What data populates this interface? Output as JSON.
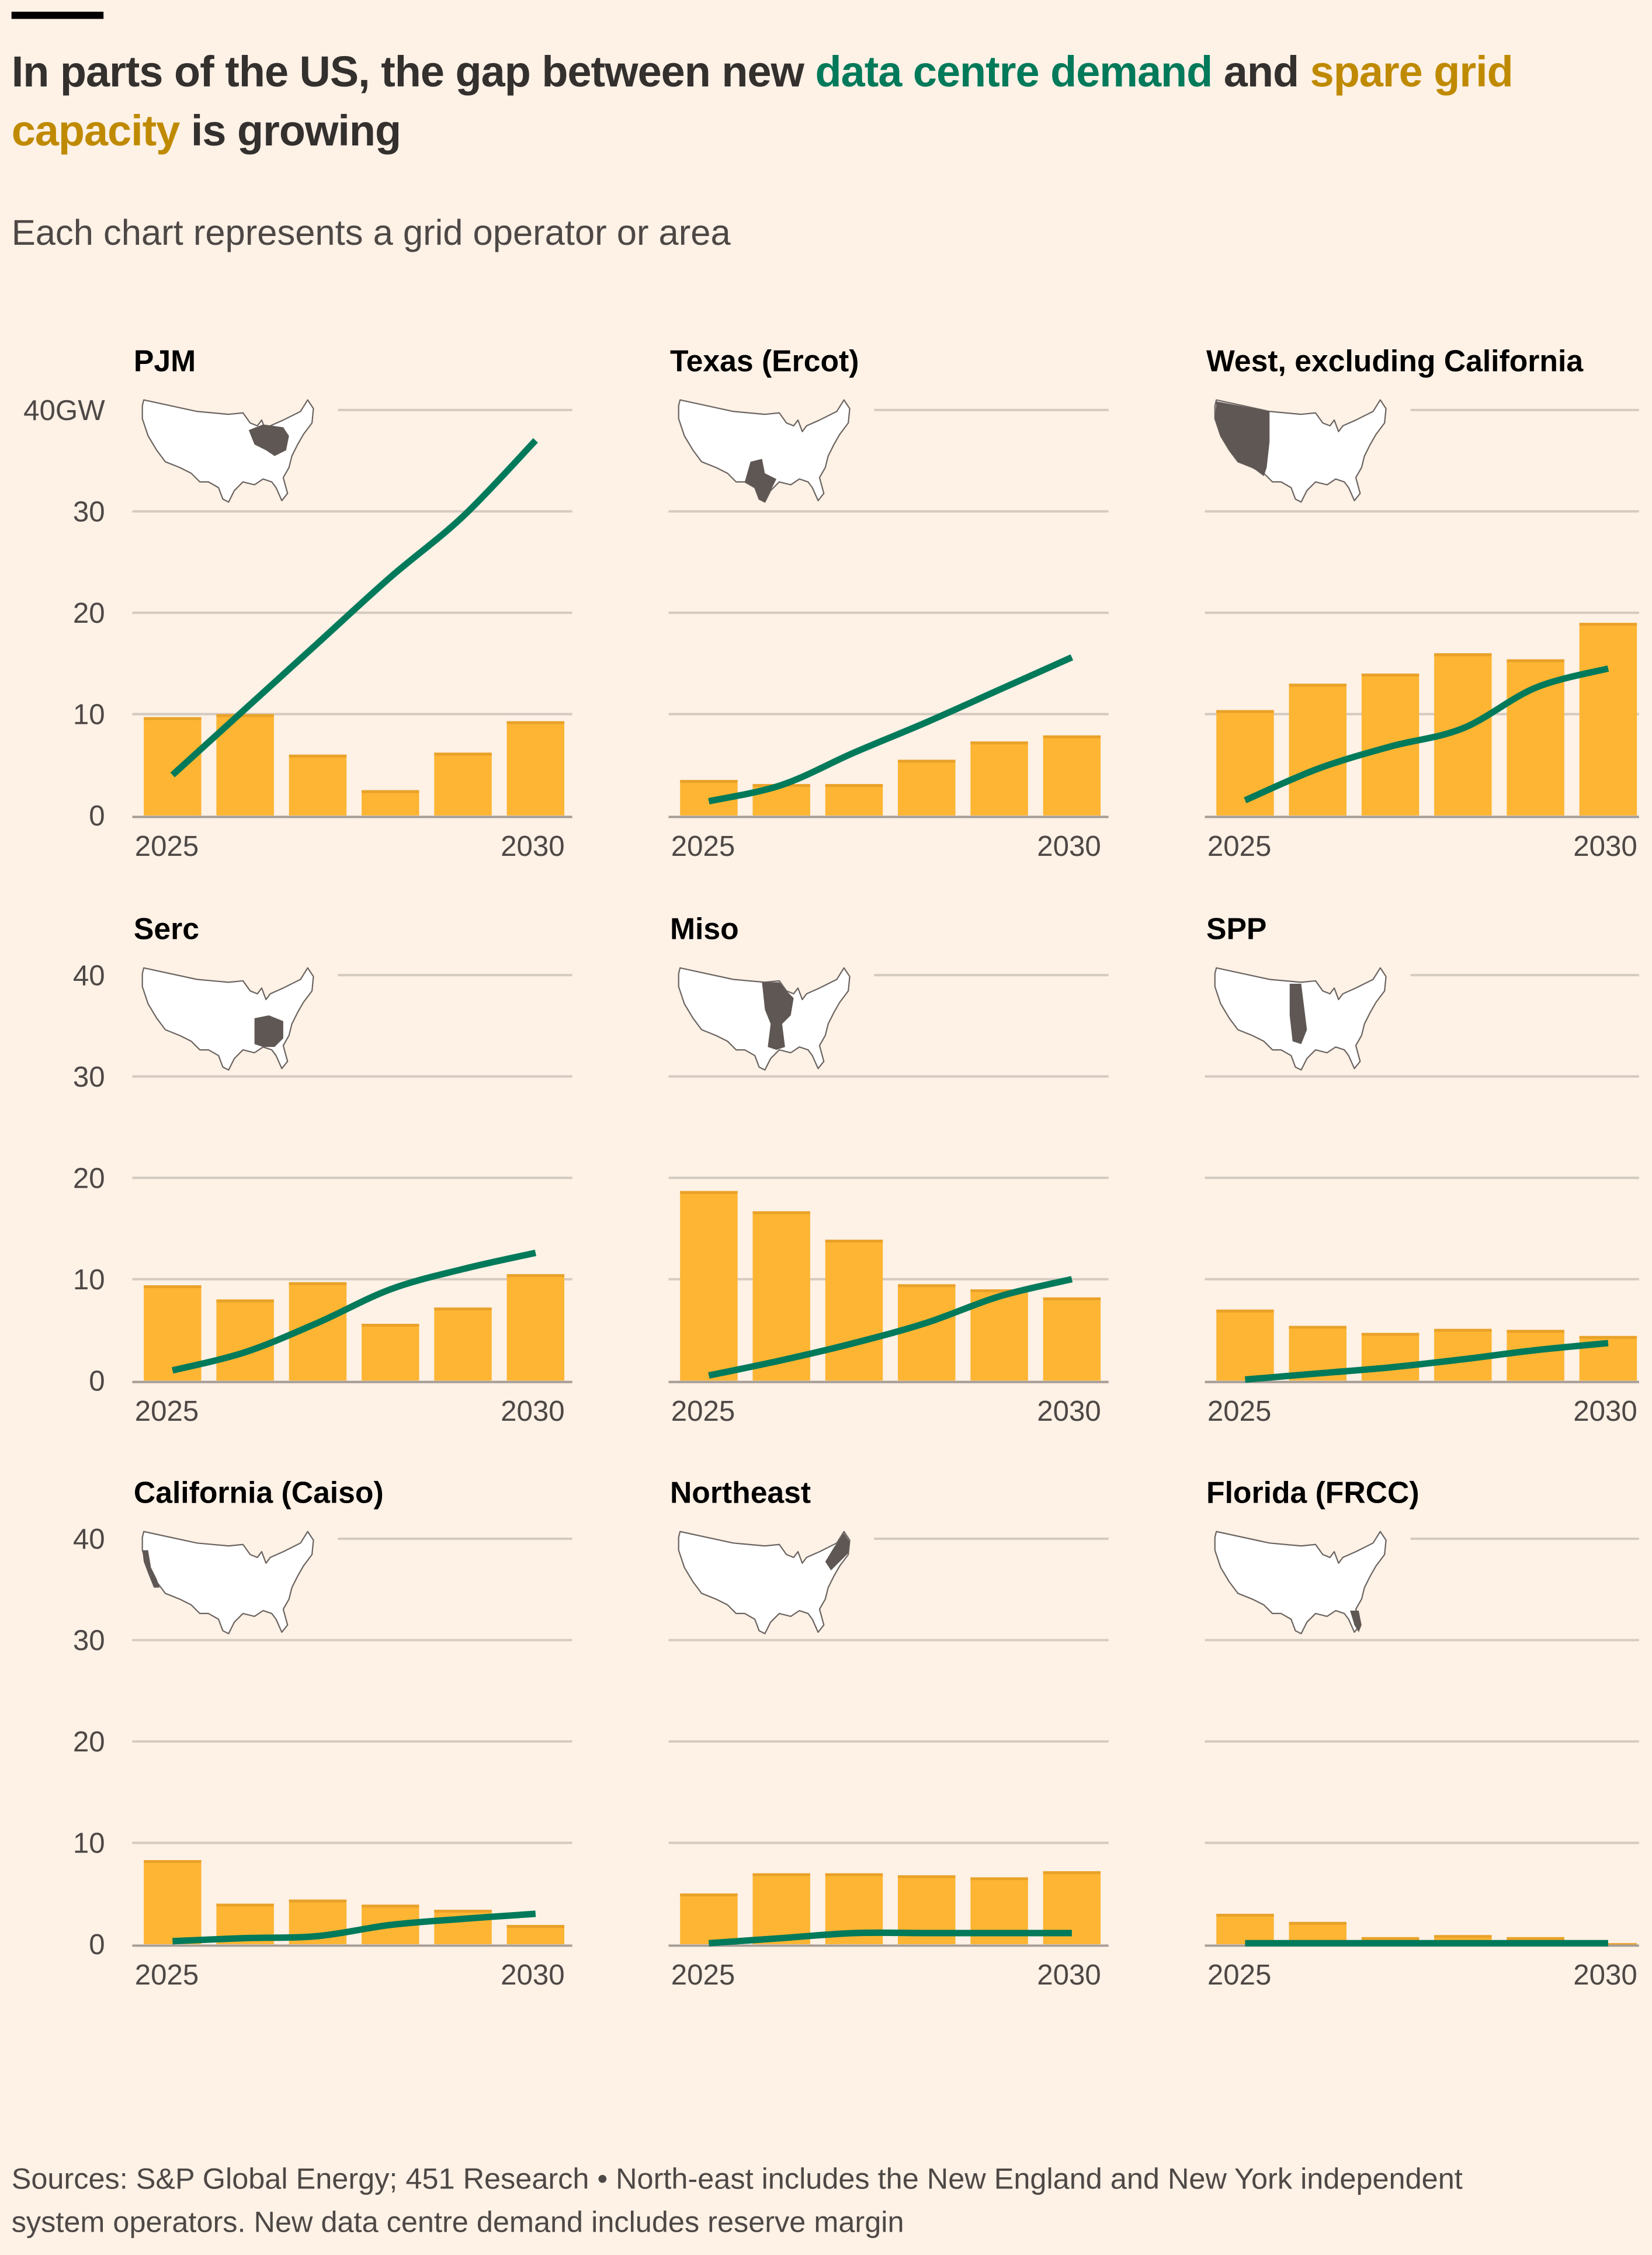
{
  "header": {
    "title_line1": [
      {
        "text": "In parts of the US, the gap between new ",
        "color": "#33302e"
      },
      {
        "text": "data centre demand",
        "color": "#007a5a"
      },
      {
        "text": " and ",
        "color": "#33302e"
      },
      {
        "text": "spare grid",
        "color": "#bf8a00"
      }
    ],
    "title_line2": [
      {
        "text": "capacity",
        "color": "#bf8a00"
      },
      {
        "text": " is growing",
        "color": "#33302e"
      }
    ],
    "subtitle": "Each chart represents a grid operator or area"
  },
  "colors": {
    "background": "#fef1e6",
    "bar": "#fdb533",
    "bar_edge": "#e9a229",
    "line": "#007a5a",
    "grid": "#d3cac0",
    "map_highlight": "#5f5753"
  },
  "footnote": {
    "line1": "Sources: S&P Global Energy; 451 Research • North-east includes the New England and New York independent",
    "line2": "system operators. New data centre demand includes reserve margin"
  },
  "chart_data": [
    {
      "title": "PJM",
      "type": "bar+line",
      "region": "pjm",
      "x": [
        2025,
        2026,
        2027,
        2028,
        2029,
        2030
      ],
      "xticks": [
        "2025",
        "2030"
      ],
      "ylim": [
        0,
        40
      ],
      "yticks": [
        "0",
        "10",
        "20",
        "30",
        "40GW"
      ],
      "grid": true,
      "series": [
        {
          "name": "spare grid capacity",
          "type": "bar",
          "values": [
            9.7,
            10,
            6,
            2.5,
            6.2,
            9.3
          ]
        },
        {
          "name": "data centre demand",
          "type": "line",
          "values": [
            4,
            10.5,
            17,
            23.5,
            29.5,
            37
          ]
        }
      ]
    },
    {
      "title": "Texas (Ercot)",
      "type": "bar+line",
      "region": "texas",
      "x": [
        2025,
        2026,
        2027,
        2028,
        2029,
        2030
      ],
      "xticks": [
        "2025",
        "2030"
      ],
      "ylim": [
        0,
        40
      ],
      "yticks": [],
      "grid": true,
      "series": [
        {
          "name": "spare grid capacity",
          "type": "bar",
          "values": [
            3.5,
            3.1,
            3.1,
            5.5,
            7.3,
            7.9
          ]
        },
        {
          "name": "data centre demand",
          "type": "line",
          "values": [
            1.4,
            3,
            6.2,
            9.2,
            12.4,
            15.6
          ]
        }
      ]
    },
    {
      "title": "West, excluding California",
      "type": "bar+line",
      "region": "west",
      "x": [
        2025,
        2026,
        2027,
        2028,
        2029,
        2030
      ],
      "xticks": [
        "2025",
        "2030"
      ],
      "ylim": [
        0,
        40
      ],
      "yticks": [],
      "grid": true,
      "series": [
        {
          "name": "spare grid capacity",
          "type": "bar",
          "values": [
            10.4,
            13,
            14,
            16,
            15.4,
            19
          ]
        },
        {
          "name": "data centre demand",
          "type": "line",
          "values": [
            1.5,
            4.6,
            6.8,
            8.6,
            12.6,
            14.5
          ]
        }
      ]
    },
    {
      "title": "Serc",
      "type": "bar+line",
      "region": "serc",
      "x": [
        2025,
        2026,
        2027,
        2028,
        2029,
        2030
      ],
      "xticks": [
        "2025",
        "2030"
      ],
      "ylim": [
        0,
        40
      ],
      "yticks": [
        "0",
        "10",
        "20",
        "30",
        "40"
      ],
      "grid": true,
      "series": [
        {
          "name": "spare grid capacity",
          "type": "bar",
          "values": [
            9.4,
            8,
            9.7,
            5.6,
            7.2,
            10.5
          ]
        },
        {
          "name": "data centre demand",
          "type": "line",
          "values": [
            1,
            2.8,
            5.7,
            9,
            11,
            12.6
          ]
        }
      ]
    },
    {
      "title": "Miso",
      "type": "bar+line",
      "region": "miso",
      "x": [
        2025,
        2026,
        2027,
        2028,
        2029,
        2030
      ],
      "xticks": [
        "2025",
        "2030"
      ],
      "ylim": [
        0,
        40
      ],
      "yticks": [],
      "grid": true,
      "series": [
        {
          "name": "spare grid capacity",
          "type": "bar",
          "values": [
            18.7,
            16.7,
            13.9,
            9.5,
            9,
            8.2
          ]
        },
        {
          "name": "data centre demand",
          "type": "line",
          "values": [
            0.5,
            2,
            3.7,
            5.7,
            8.3,
            10
          ]
        }
      ]
    },
    {
      "title": "SPP",
      "type": "bar+line",
      "region": "spp",
      "x": [
        2025,
        2026,
        2027,
        2028,
        2029,
        2030
      ],
      "xticks": [
        "2025",
        "2030"
      ],
      "ylim": [
        0,
        40
      ],
      "yticks": [],
      "grid": true,
      "series": [
        {
          "name": "spare grid capacity",
          "type": "bar",
          "values": [
            7,
            5.4,
            4.7,
            5.1,
            5,
            4.4
          ]
        },
        {
          "name": "data centre demand",
          "type": "line",
          "values": [
            0.1,
            0.7,
            1.3,
            2.1,
            3,
            3.7
          ]
        }
      ]
    },
    {
      "title": "California (Caiso)",
      "type": "bar+line",
      "region": "caiso",
      "x": [
        2025,
        2026,
        2027,
        2028,
        2029,
        2030
      ],
      "xticks": [
        "2025",
        "2030"
      ],
      "ylim": [
        0,
        40
      ],
      "yticks": [
        "0",
        "10",
        "20",
        "30",
        "40"
      ],
      "grid": true,
      "series": [
        {
          "name": "spare grid capacity",
          "type": "bar",
          "values": [
            8.3,
            4,
            4.4,
            3.9,
            3.4,
            1.9
          ]
        },
        {
          "name": "data centre demand",
          "type": "line",
          "values": [
            0.3,
            0.6,
            0.8,
            1.9,
            2.5,
            3
          ]
        }
      ]
    },
    {
      "title": "Northeast",
      "type": "bar+line",
      "region": "northeast",
      "x": [
        2025,
        2026,
        2027,
        2028,
        2029,
        2030
      ],
      "xticks": [
        "2025",
        "2030"
      ],
      "ylim": [
        0,
        40
      ],
      "yticks": [],
      "grid": true,
      "series": [
        {
          "name": "spare grid capacity",
          "type": "bar",
          "values": [
            5,
            7,
            7,
            6.8,
            6.6,
            7.2
          ]
        },
        {
          "name": "data centre demand",
          "type": "line",
          "values": [
            0.1,
            0.6,
            1.1,
            1.1,
            1.1,
            1.1
          ]
        }
      ]
    },
    {
      "title": "Florida (FRCC)",
      "type": "bar+line",
      "region": "florida",
      "x": [
        2025,
        2026,
        2027,
        2028,
        2029,
        2030
      ],
      "xticks": [
        "2025",
        "2030"
      ],
      "ylim": [
        0,
        40
      ],
      "yticks": [],
      "grid": true,
      "series": [
        {
          "name": "spare grid capacity",
          "type": "bar",
          "values": [
            3,
            2.2,
            0.7,
            0.9,
            0.7,
            0.1
          ]
        },
        {
          "name": "data centre demand",
          "type": "line",
          "values": [
            0.1,
            0.1,
            0.1,
            0.1,
            0.1,
            0.1
          ]
        }
      ]
    }
  ]
}
